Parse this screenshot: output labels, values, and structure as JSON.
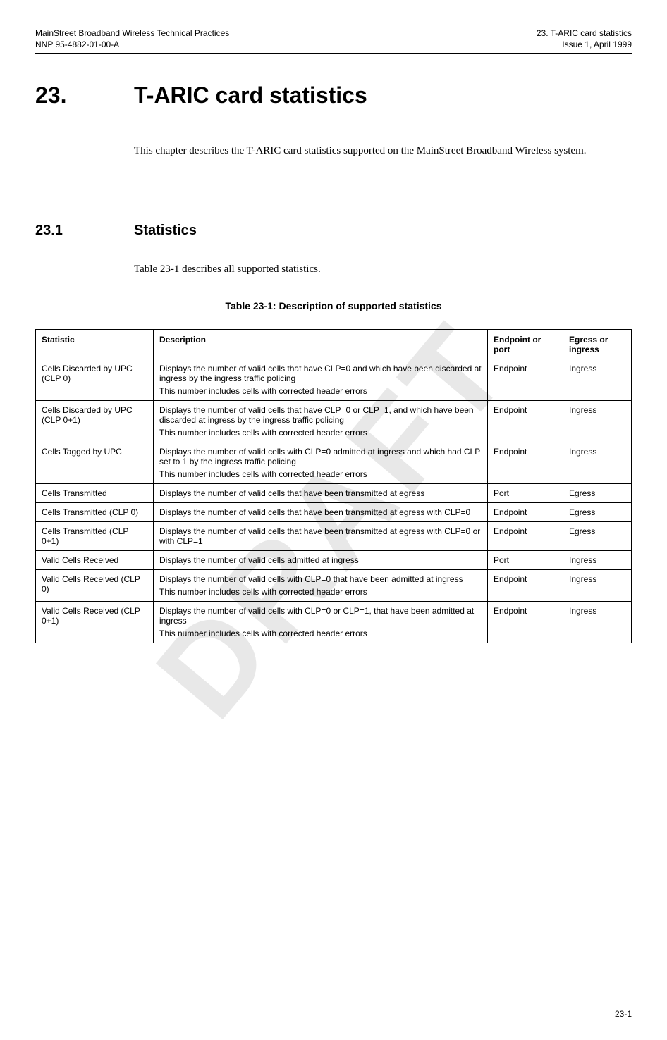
{
  "header": {
    "left1": "MainStreet Broadband Wireless Technical Practices",
    "left2": "NNP 95-4882-01-00-A",
    "right1": "23. T-ARIC card statistics",
    "right2": "Issue 1, April 1999"
  },
  "watermark": "DRAFT",
  "chapter": {
    "number": "23.",
    "title": "T-ARIC card statistics"
  },
  "intro": "This chapter describes the T-ARIC card statistics supported on the MainStreet Broadband Wireless system.",
  "section": {
    "number": "23.1",
    "title": "Statistics",
    "intro": "Table 23-1 describes all supported statistics."
  },
  "table": {
    "caption": "Table 23-1:  Description of supported statistics",
    "columns": [
      "Statistic",
      "Description",
      "Endpoint or port",
      "Egress or ingress"
    ],
    "rows": [
      {
        "stat": "Cells Discarded by UPC (CLP 0)",
        "desc": [
          "Displays the number of valid cells that have CLP=0 and which have been discarded at ingress by the ingress traffic policing",
          "This number includes cells with corrected header errors"
        ],
        "ep": "Endpoint",
        "dir": "Ingress"
      },
      {
        "stat": "Cells Discarded by UPC (CLP 0+1)",
        "desc": [
          "Displays the number of valid cells that have CLP=0 or CLP=1, and which have been discarded at ingress by the ingress traffic policing",
          "This number includes cells with corrected header errors"
        ],
        "ep": "Endpoint",
        "dir": "Ingress"
      },
      {
        "stat": "Cells Tagged by UPC",
        "desc": [
          "Displays the number of valid cells with CLP=0 admitted at ingress and which had CLP set to 1 by the ingress traffic policing",
          "This number includes cells with corrected header errors"
        ],
        "ep": "Endpoint",
        "dir": "Ingress"
      },
      {
        "stat": "Cells Transmitted",
        "desc": [
          "Displays the number of valid cells that have been transmitted at egress"
        ],
        "ep": "Port",
        "dir": "Egress"
      },
      {
        "stat": "Cells Transmitted (CLP 0)",
        "desc": [
          "Displays the number of valid cells that have been transmitted at egress with CLP=0"
        ],
        "ep": "Endpoint",
        "dir": "Egress"
      },
      {
        "stat": "Cells Transmitted (CLP 0+1)",
        "desc": [
          "Displays the number of valid cells that have been transmitted at egress with CLP=0 or with CLP=1"
        ],
        "ep": "Endpoint",
        "dir": "Egress"
      },
      {
        "stat": "Valid Cells Received",
        "desc": [
          "Displays the number of valid cells admitted at ingress"
        ],
        "ep": "Port",
        "dir": "Ingress"
      },
      {
        "stat": "Valid Cells Received (CLP 0)",
        "desc": [
          "Displays the number of valid cells with CLP=0 that have been admitted at ingress",
          "This number includes cells with corrected header errors"
        ],
        "ep": "Endpoint",
        "dir": "Ingress"
      },
      {
        "stat": "Valid Cells Received (CLP 0+1)",
        "desc": [
          "Displays the number of valid cells with CLP=0 or CLP=1, that have been admitted at ingress",
          "This number includes cells with corrected header errors"
        ],
        "ep": "Endpoint",
        "dir": "Ingress"
      }
    ]
  },
  "footer": "23-1"
}
